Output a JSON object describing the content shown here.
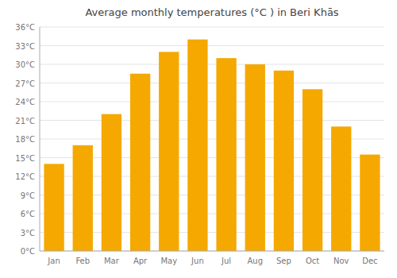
{
  "chart_data": {
    "type": "bar",
    "title": "Average monthly temperatures (°C ) in Beri Khās",
    "categories": [
      "Jan",
      "Feb",
      "Mar",
      "Apr",
      "May",
      "Jun",
      "Jul",
      "Aug",
      "Sep",
      "Oct",
      "Nov",
      "Dec"
    ],
    "values": [
      14.0,
      17.0,
      22.0,
      28.5,
      32.0,
      34.0,
      31.0,
      30.0,
      29.0,
      26.0,
      20.0,
      15.5
    ],
    "color": "#F5A800",
    "ylim": [
      0,
      36
    ],
    "yticks": [
      {
        "value": 0,
        "label": "0°C"
      },
      {
        "value": 3,
        "label": "3°C"
      },
      {
        "value": 6,
        "label": "6°C"
      },
      {
        "value": 9,
        "label": "9°C"
      },
      {
        "value": 12,
        "label": "12°C"
      },
      {
        "value": 15,
        "label": "15°C"
      },
      {
        "value": 18,
        "label": "18°C"
      },
      {
        "value": 21,
        "label": "21°C"
      },
      {
        "value": 24,
        "label": "24°C"
      },
      {
        "value": 27,
        "label": "27°C"
      },
      {
        "value": 30,
        "label": "30°C"
      },
      {
        "value": 33,
        "label": "33°C"
      },
      {
        "value": 36,
        "label": "36°C"
      }
    ],
    "grid": true
  }
}
